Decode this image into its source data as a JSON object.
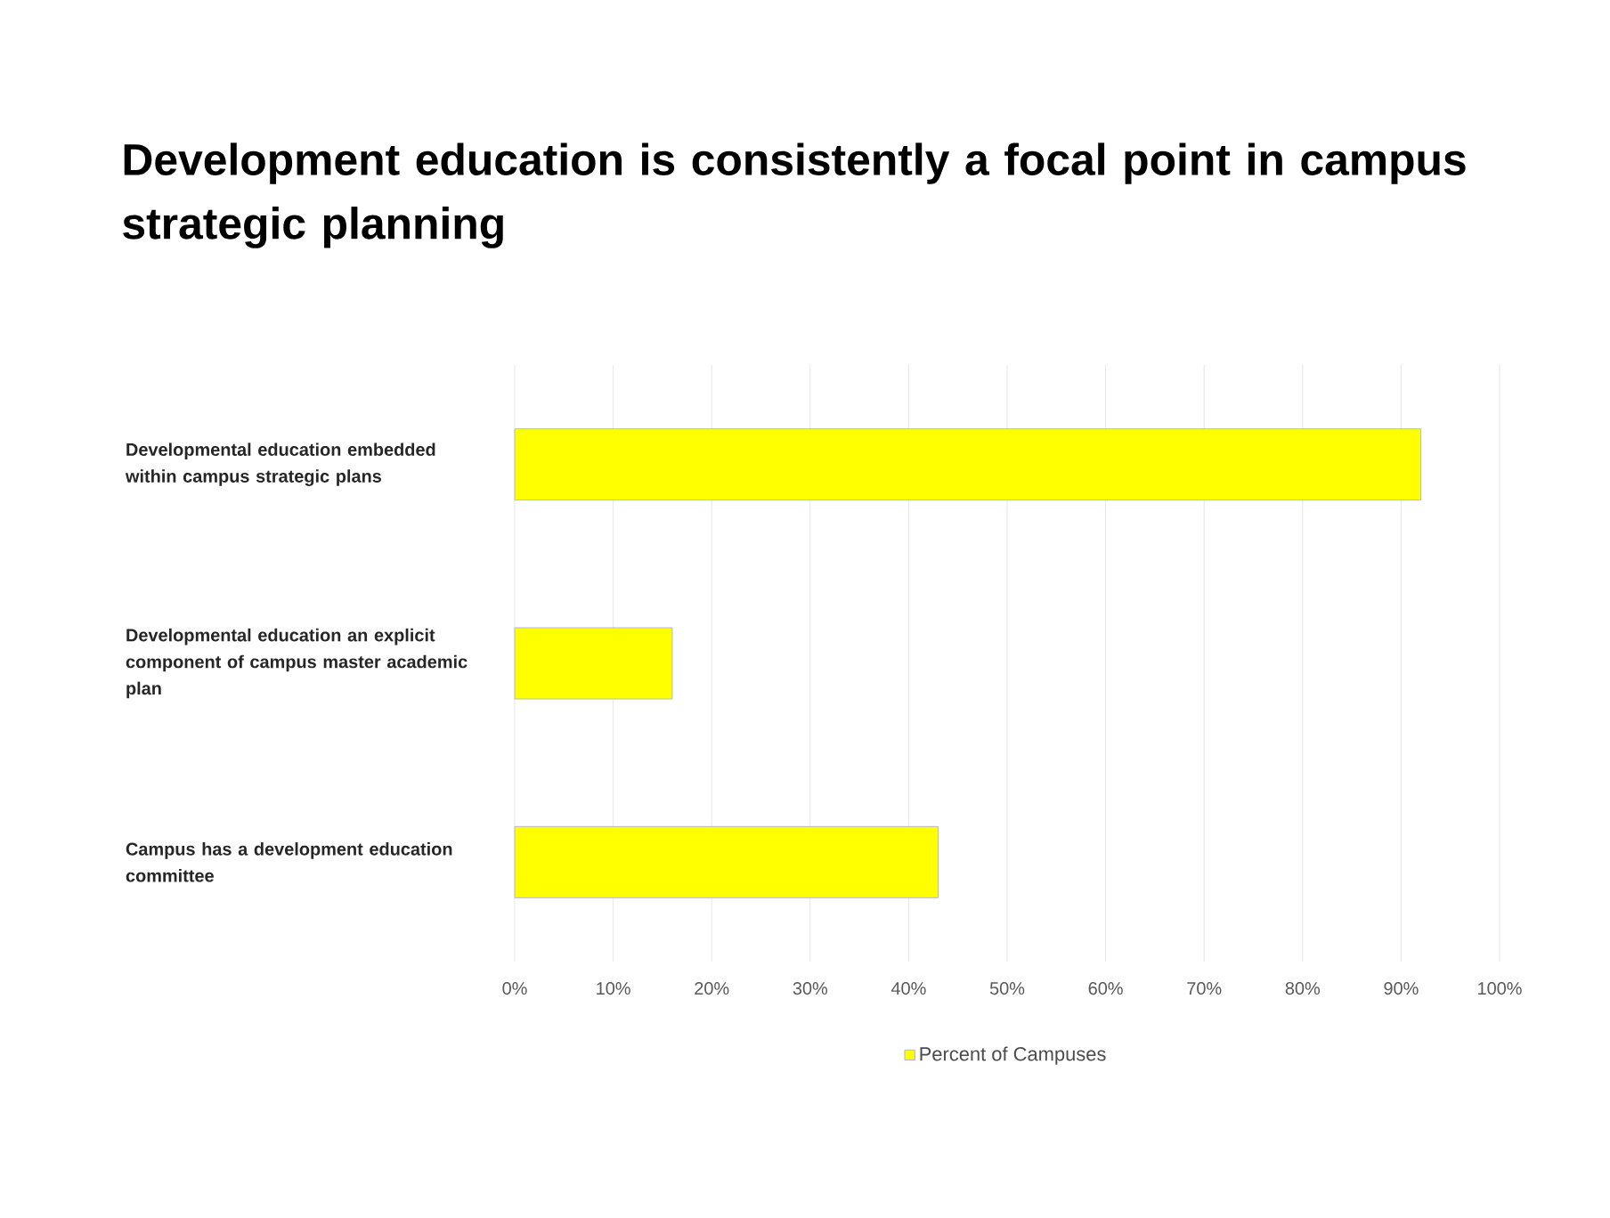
{
  "chart_data": {
    "type": "bar",
    "orientation": "horizontal",
    "title": "Development education is consistently a focal point in campus strategic planning",
    "categories": [
      "Developmental education embedded within campus strategic plans",
      "Developmental education an explicit component of campus master academic plan",
      "Campus has a development education committee"
    ],
    "series": [
      {
        "name": "Percent of Campuses",
        "color": "#ffff00",
        "values": [
          92,
          16,
          43
        ]
      }
    ],
    "xlim": [
      0,
      100
    ],
    "xticks": [
      {
        "value": 0,
        "label": "0%"
      },
      {
        "value": 10,
        "label": "10%"
      },
      {
        "value": 20,
        "label": "20%"
      },
      {
        "value": 30,
        "label": "30%"
      },
      {
        "value": 40,
        "label": "40%"
      },
      {
        "value": 50,
        "label": "50%"
      },
      {
        "value": 60,
        "label": "60%"
      },
      {
        "value": 70,
        "label": "70%"
      },
      {
        "value": 80,
        "label": "80%"
      },
      {
        "value": 90,
        "label": "90%"
      },
      {
        "value": 100,
        "label": "100%"
      }
    ],
    "grid": "x",
    "legend": "bottom"
  }
}
